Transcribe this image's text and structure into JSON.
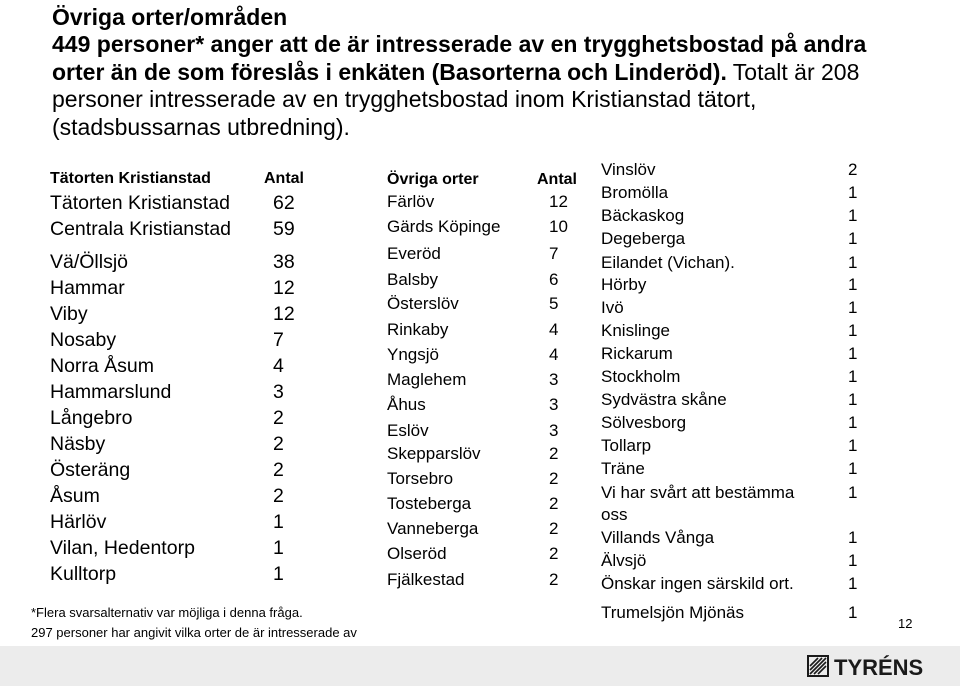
{
  "title": "Övriga orter/områden",
  "subtitle_bold": "449 personer* anger att de är intresserade av en trygghetsbostad på andra orter än de som föreslås i enkäten (Basorterna och Linderöd).",
  "subtitle_normal": " Totalt är 208 personer intresserade av en trygghetsbostad inom Kristianstad tätort, (stadsbussarnas utbredning).",
  "table1": {
    "header": {
      "name": "Tätorten Kristianstad",
      "count": "Antal"
    },
    "rows": [
      {
        "name": "Tätorten Kristianstad",
        "count": "62"
      },
      {
        "name": "Centrala Kristianstad",
        "count": "59"
      },
      {
        "name": "Vä/Öllsjö",
        "count": "38"
      },
      {
        "name": "Hammar",
        "count": "12"
      },
      {
        "name": "Viby",
        "count": "12"
      },
      {
        "name": "Nosaby",
        "count": "7"
      },
      {
        "name": "Norra Åsum",
        "count": "4"
      },
      {
        "name": "Hammarslund",
        "count": "3"
      },
      {
        "name": "Långebro",
        "count": "2"
      },
      {
        "name": "Näsby",
        "count": "2"
      },
      {
        "name": "Österäng",
        "count": "2"
      },
      {
        "name": "Åsum",
        "count": "2"
      },
      {
        "name": "Härlöv",
        "count": "1"
      },
      {
        "name": "Vilan, Hedentorp",
        "count": "1"
      },
      {
        "name": "Kulltorp",
        "count": "1"
      }
    ]
  },
  "table2": {
    "header": {
      "name": "Övriga orter",
      "count": "Antal"
    },
    "rows": [
      {
        "name": "Färlöv",
        "count": "12"
      },
      {
        "name": "Gärds Köpinge",
        "count": "10"
      },
      {
        "name": "Everöd",
        "count": "7"
      },
      {
        "name": "Balsby",
        "count": "6"
      },
      {
        "name": "Österslöv",
        "count": "5"
      },
      {
        "name": "Rinkaby",
        "count": "4"
      },
      {
        "name": "Yngsjö",
        "count": "4"
      },
      {
        "name": "Maglehem",
        "count": "3"
      },
      {
        "name": "Åhus",
        "count": "3"
      },
      {
        "name": "Eslöv",
        "count": "3"
      },
      {
        "name": "Skepparslöv",
        "count": "2"
      },
      {
        "name": "Torsebro",
        "count": "2"
      },
      {
        "name": "Tosteberga",
        "count": "2"
      },
      {
        "name": "Vanneberga",
        "count": "2"
      },
      {
        "name": "Olseröd",
        "count": "2"
      },
      {
        "name": "Fjälkestad",
        "count": "2"
      }
    ]
  },
  "table3": {
    "rows": [
      {
        "name": "Vinslöv",
        "count": "2"
      },
      {
        "name": "Bromölla",
        "count": "1"
      },
      {
        "name": "Bäckaskog",
        "count": "1"
      },
      {
        "name": "Degeberga",
        "count": "1"
      },
      {
        "name": "Eilandet (Vichan).",
        "count": "1"
      },
      {
        "name": "Hörby",
        "count": "1"
      },
      {
        "name": "Ivö",
        "count": "1"
      },
      {
        "name": "Knislinge",
        "count": "1"
      },
      {
        "name": "Rickarum",
        "count": "1"
      },
      {
        "name": "Stockholm",
        "count": "1"
      },
      {
        "name": "Sydvästra skåne",
        "count": "1"
      },
      {
        "name": "Sölvesborg",
        "count": "1"
      },
      {
        "name": "Tollarp",
        "count": "1"
      },
      {
        "name": "Träne",
        "count": "1"
      },
      {
        "name": "Vi har svårt att bestämma",
        "count": "1"
      },
      {
        "name": "oss",
        "count": ""
      },
      {
        "name": "Villands Vånga",
        "count": "1"
      },
      {
        "name": "Älvsjö",
        "count": "1"
      },
      {
        "name": "Önskar ingen särskild ort.",
        "count": "1"
      },
      {
        "name": "Trumelsjön Mjönäs",
        "count": "1"
      }
    ]
  },
  "footnotes": [
    "*Flera svarsalternativ var möjliga i denna fråga.",
    "297 personer har angivit vilka orter de är intresserade av"
  ],
  "page_number": "12",
  "logo_text": "TYRÉNS",
  "colors": {
    "text": "#000000",
    "bottom_bar": "#ececec",
    "logo": "#1a1a1a"
  }
}
